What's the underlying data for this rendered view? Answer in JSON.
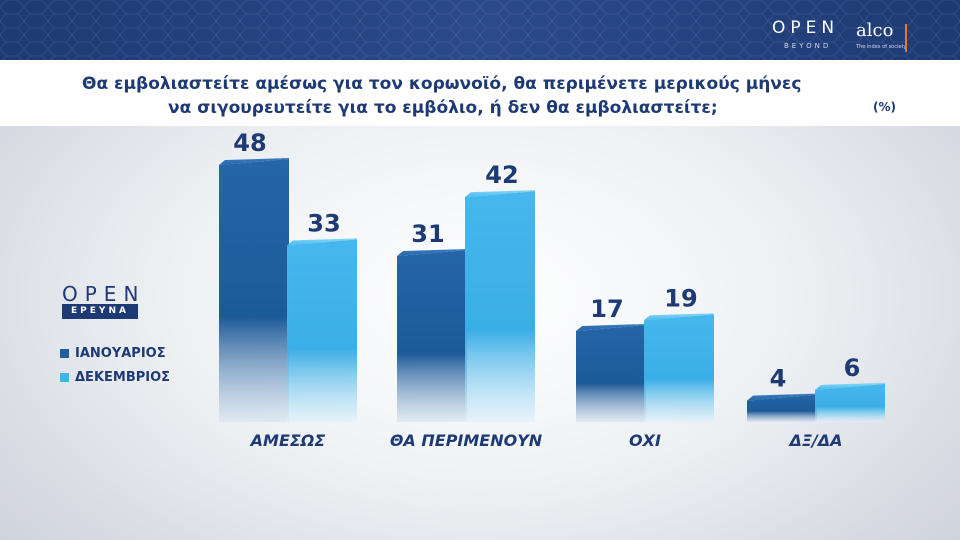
{
  "header": {
    "brand_open": "OPEN",
    "brand_open_sub": "BEYOND",
    "brand_alco": "alco",
    "brand_alco_sub": "The index of society"
  },
  "title": {
    "line1": "Θα εμβολιαστείτε αμέσως για τον κορωνοϊό, θα περιμένετε μερικούς μήνες",
    "line2": "να σιγουρευτείτε για το εμβόλιο, ή δεν θα εμβολιαστείτε;",
    "unit": "(%)"
  },
  "side_logo": {
    "open": "OPEN",
    "tag": "ΕΡΕΥΝΑ"
  },
  "colors": {
    "header_bg": "#1e3a74",
    "text_navy": "#1e3a74",
    "series_jan": "#1f5fa0",
    "series_dec": "#3fb4ea"
  },
  "chart_data": {
    "type": "bar",
    "categories": [
      "ΑΜΕΣΩΣ",
      "ΘΑ ΠΕΡΙΜΕΝΟΥΝ",
      "ΟΧΙ",
      "ΔΞ/ΔΑ"
    ],
    "series": [
      {
        "name": "ΙΑΝΟΥΑΡΙΟΣ",
        "values": [
          48,
          31,
          17,
          4
        ]
      },
      {
        "name": "ΔΕΚΕΜΒΡΙΟΣ",
        "values": [
          33,
          42,
          19,
          6
        ]
      }
    ],
    "ylim": [
      0,
      48
    ],
    "legend_position": "left",
    "grid": false
  }
}
